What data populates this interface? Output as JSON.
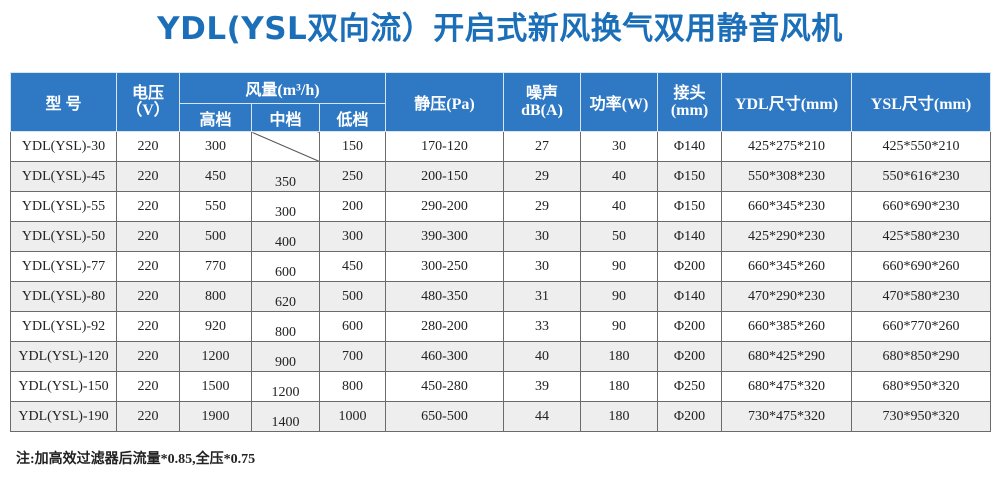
{
  "title": "YDL(YSL双向流）开启式新风换气双用静音风机",
  "header": {
    "model": "型 号",
    "voltage": "电压\n（V）",
    "airflow": "风量(m³/h)",
    "high": "高档",
    "medium": "中档",
    "low": "低档",
    "static_pressure": "静压(Pa)",
    "noise": "噪声\ndB(A)",
    "power": "功率(W)",
    "joint": "接头\n(mm)",
    "ydl_size": "YDL尺寸(mm)",
    "ysl_size": "YSL尺寸(mm)"
  },
  "rows": [
    {
      "model": "YDL(YSL)-30",
      "voltage": "220",
      "high": "300",
      "medium": "",
      "low": "150",
      "pressure": "170-120",
      "noise": "27",
      "power": "30",
      "joint": "Φ140",
      "ydl": "425*275*210",
      "ysl": "425*550*210"
    },
    {
      "model": "YDL(YSL)-45",
      "voltage": "220",
      "high": "450",
      "medium": "350",
      "low": "250",
      "pressure": "200-150",
      "noise": "29",
      "power": "40",
      "joint": "Φ150",
      "ydl": "550*308*230",
      "ysl": "550*616*230"
    },
    {
      "model": "YDL(YSL)-55",
      "voltage": "220",
      "high": "550",
      "medium": "300",
      "low": "200",
      "pressure": "290-200",
      "noise": "29",
      "power": "40",
      "joint": "Φ150",
      "ydl": "660*345*230",
      "ysl": "660*690*230"
    },
    {
      "model": "YDL(YSL)-50",
      "voltage": "220",
      "high": "500",
      "medium": "400",
      "low": "300",
      "pressure": "390-300",
      "noise": "30",
      "power": "50",
      "joint": "Φ140",
      "ydl": "425*290*230",
      "ysl": "425*580*230"
    },
    {
      "model": "YDL(YSL)-77",
      "voltage": "220",
      "high": "770",
      "medium": "600",
      "low": "450",
      "pressure": "300-250",
      "noise": "30",
      "power": "90",
      "joint": "Φ200",
      "ydl": "660*345*260",
      "ysl": "660*690*260"
    },
    {
      "model": "YDL(YSL)-80",
      "voltage": "220",
      "high": "800",
      "medium": "620",
      "low": "500",
      "pressure": "480-350",
      "noise": "31",
      "power": "90",
      "joint": "Φ140",
      "ydl": "470*290*230",
      "ysl": "470*580*230"
    },
    {
      "model": "YDL(YSL)-92",
      "voltage": "220",
      "high": "920",
      "medium": "800",
      "low": "600",
      "pressure": "280-200",
      "noise": "33",
      "power": "90",
      "joint": "Φ200",
      "ydl": "660*385*260",
      "ysl": "660*770*260"
    },
    {
      "model": "YDL(YSL)-120",
      "voltage": "220",
      "high": "1200",
      "medium": "900",
      "low": "700",
      "pressure": "460-300",
      "noise": "40",
      "power": "180",
      "joint": "Φ200",
      "ydl": "680*425*290",
      "ysl": "680*850*290"
    },
    {
      "model": "YDL(YSL)-150",
      "voltage": "220",
      "high": "1500",
      "medium": "1200",
      "low": "800",
      "pressure": "450-280",
      "noise": "39",
      "power": "180",
      "joint": "Φ250",
      "ydl": "680*475*320",
      "ysl": "680*950*320"
    },
    {
      "model": "YDL(YSL)-190",
      "voltage": "220",
      "high": "1900",
      "medium": "1400",
      "low": "1000",
      "pressure": "650-500",
      "noise": "44",
      "power": "180",
      "joint": "Φ200",
      "ydl": "730*475*320",
      "ysl": "730*950*320"
    }
  ],
  "note": "注:加高效过滤器后流量*0.85,全压*0.75",
  "colors": {
    "title": "#1b6fb8",
    "header_bg": "#2e78c4",
    "header_text": "#ffffff"
  }
}
